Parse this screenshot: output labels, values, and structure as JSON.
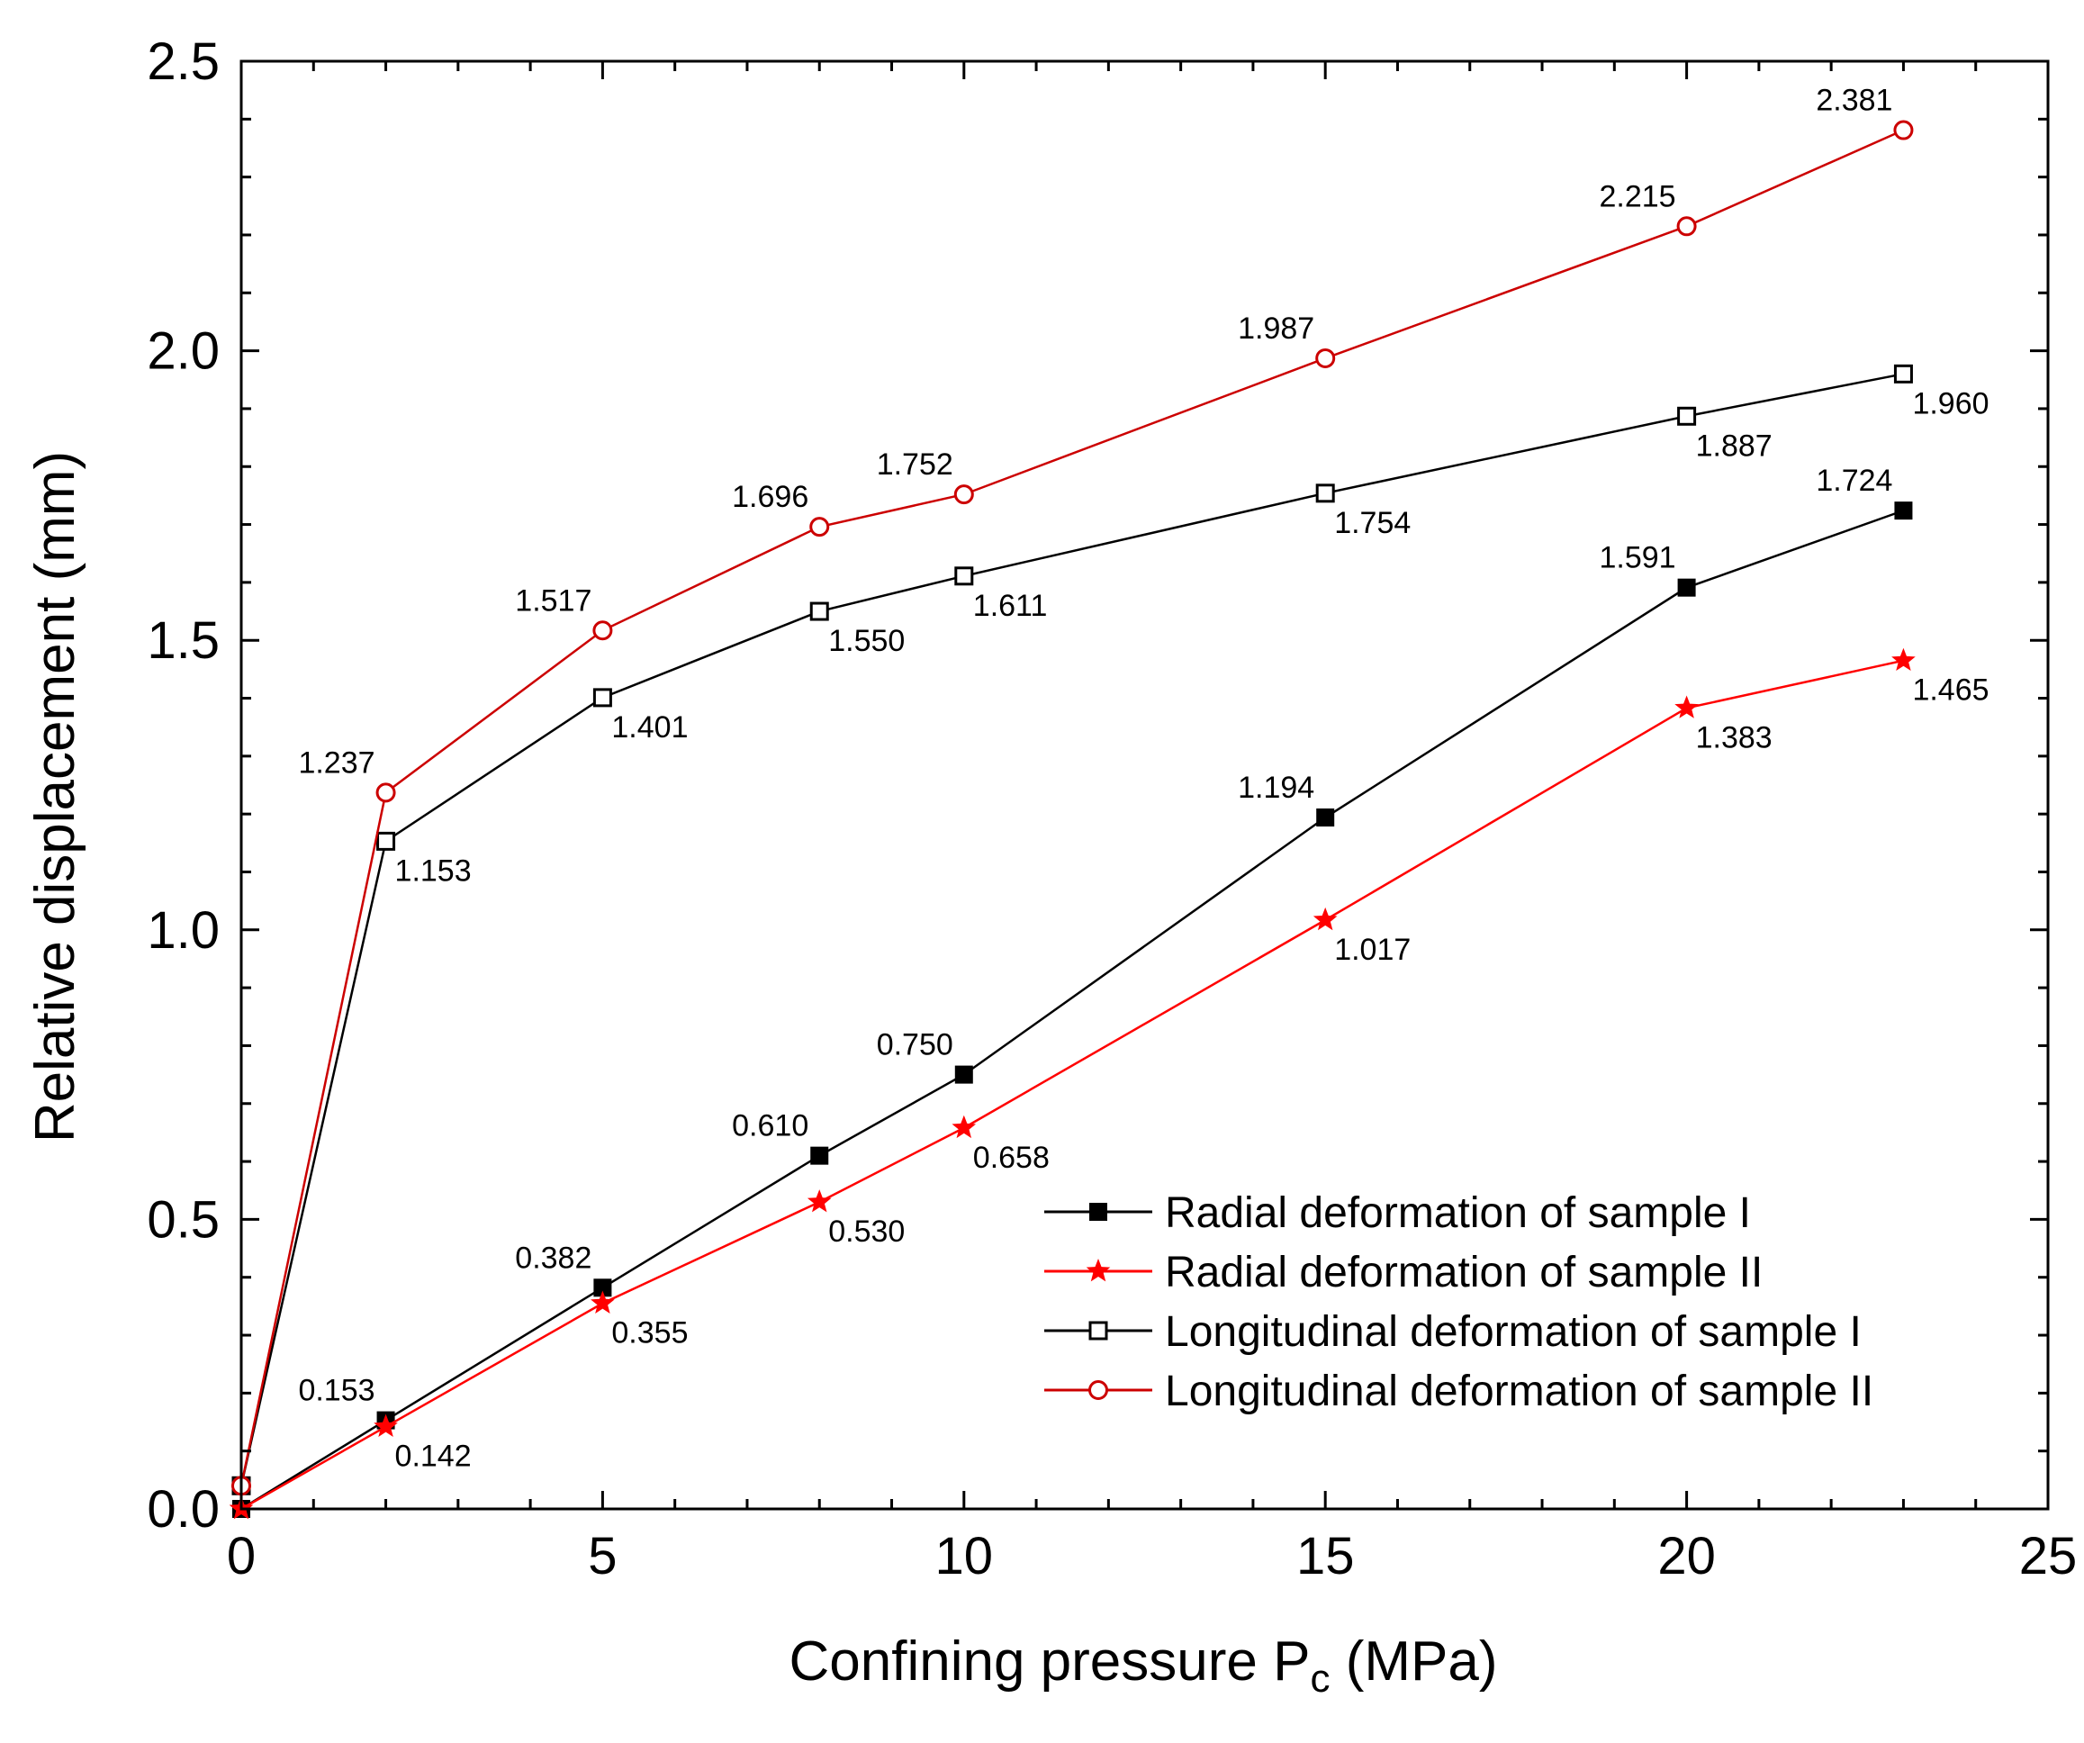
{
  "chart_data": {
    "type": "line",
    "xlabel": {
      "text": "Confining pressure P",
      "sub": "c",
      "unit": " (MPa)"
    },
    "ylabel": "Relative displacement (mm)",
    "xlim": [
      0,
      25
    ],
    "ylim": [
      0,
      2.5
    ],
    "x_ticks": [
      0,
      5,
      10,
      15,
      20,
      25
    ],
    "x_tick_labels": [
      "0",
      "5",
      "10",
      "15",
      "20",
      "25"
    ],
    "y_ticks": [
      0,
      0.5,
      1.0,
      1.5,
      2.0,
      2.5
    ],
    "y_tick_labels": [
      "0.0",
      "0.5",
      "1.0",
      "1.5",
      "2.0",
      "2.5"
    ],
    "x_minor_step": 1,
    "y_minor_step": 0.1,
    "grid": false,
    "legend_position": "bottom-right",
    "series": [
      {
        "name": "Radial deformation of sample I",
        "color": "#000000",
        "marker": "filled-square",
        "x": [
          0,
          2,
          5,
          8,
          10,
          15,
          20,
          23
        ],
        "y": [
          0,
          0.153,
          0.382,
          0.61,
          0.75,
          1.194,
          1.591,
          1.724
        ],
        "labels": [
          "",
          "0.153",
          "0.382",
          "0.610",
          "0.750",
          "1.194",
          "1.591",
          "1.724"
        ],
        "label_side": [
          "",
          "above-left",
          "above-left",
          "above-left",
          "above-left",
          "above-left",
          "above-left",
          "above-left"
        ]
      },
      {
        "name": "Radial deformation of sample II",
        "color": "#ff0000",
        "marker": "filled-star",
        "x": [
          0,
          2,
          5,
          8,
          10,
          15,
          20,
          23
        ],
        "y": [
          0,
          0.142,
          0.355,
          0.53,
          0.658,
          1.017,
          1.383,
          1.465
        ],
        "labels": [
          "",
          "0.142",
          "0.355",
          "0.530",
          "0.658",
          "1.017",
          "1.383",
          "1.465"
        ],
        "label_side": [
          "",
          "below-right",
          "below-right",
          "below-right",
          "below-right",
          "below-right",
          "below-right",
          "below-right"
        ]
      },
      {
        "name": "Longitudinal deformation of sample I",
        "color": "#000000",
        "marker": "open-square",
        "x": [
          0,
          2,
          5,
          8,
          10,
          15,
          20,
          23
        ],
        "y": [
          0.04,
          1.153,
          1.401,
          1.55,
          1.611,
          1.754,
          1.887,
          1.96
        ],
        "labels": [
          "",
          "1.153",
          "1.401",
          "1.550",
          "1.611",
          "1.754",
          "1.887",
          "1.960"
        ],
        "label_side": [
          "",
          "below-right",
          "below-right",
          "below-right",
          "below-right",
          "below-right",
          "below-right",
          "below-right"
        ]
      },
      {
        "name": "Longitudinal deformation of sample II",
        "color": "#cc0000",
        "marker": "open-circle",
        "x": [
          0,
          2,
          5,
          8,
          10,
          15,
          20,
          23
        ],
        "y": [
          0.04,
          1.237,
          1.517,
          1.696,
          1.752,
          1.987,
          2.215,
          2.381
        ],
        "labels": [
          "",
          "1.237",
          "1.517",
          "1.696",
          "1.752",
          "1.987",
          "2.215",
          "2.381"
        ],
        "label_side": [
          "",
          "above-left",
          "above-left",
          "above-left",
          "above-left",
          "above-left",
          "above-left",
          "above-left"
        ]
      }
    ]
  }
}
